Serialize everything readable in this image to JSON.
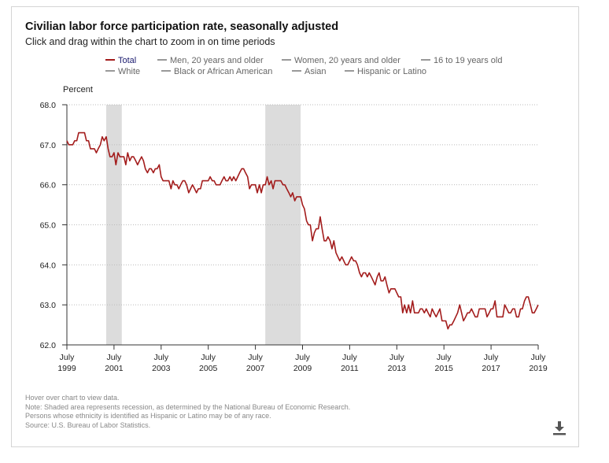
{
  "header": {
    "title": "Civilian labor force participation rate, seasonally adjusted",
    "subtitle": "Click and drag within the chart to zoom in on time periods"
  },
  "legend": {
    "items": [
      {
        "label": "Total",
        "active": true
      },
      {
        "label": "Men, 20 years and older",
        "active": false
      },
      {
        "label": "Women, 20 years and older",
        "active": false
      },
      {
        "label": "16 to 19 years old",
        "active": false
      },
      {
        "label": "White",
        "active": false
      },
      {
        "label": "Black or African American",
        "active": false
      },
      {
        "label": "Asian",
        "active": false
      },
      {
        "label": "Hispanic or Latino",
        "active": false
      }
    ]
  },
  "notes": [
    "Hover over chart to view data.",
    "Note: Shaded area represents recession, as determined by the National Bureau of Economic Research.",
    "Persons whose ethnicity is identified as Hispanic or Latino may be of any race.",
    "Source: U.S. Bureau of Labor Statistics."
  ],
  "icons": {
    "download": "download-icon"
  },
  "colors": {
    "series": "#a31c1c",
    "recession": "#dcdcdc",
    "legend_active": "#1a1a6e"
  },
  "chart_data": {
    "type": "line",
    "title": "Civilian labor force participation rate, seasonally adjusted",
    "ylabel": "Percent",
    "xlabel": "",
    "ylim": [
      62.0,
      68.0
    ],
    "yticks": [
      "68.0",
      "67.0",
      "66.0",
      "65.0",
      "64.0",
      "63.0",
      "62.0"
    ],
    "xticks": [
      {
        "label": "July",
        "year": "1999",
        "t": 1999.5
      },
      {
        "label": "July",
        "year": "2001",
        "t": 2001.5
      },
      {
        "label": "July",
        "year": "2003",
        "t": 2003.5
      },
      {
        "label": "July",
        "year": "2005",
        "t": 2005.5
      },
      {
        "label": "July",
        "year": "2007",
        "t": 2007.5
      },
      {
        "label": "July",
        "year": "2009",
        "t": 2009.5
      },
      {
        "label": "July",
        "year": "2011",
        "t": 2011.5
      },
      {
        "label": "July",
        "year": "2013",
        "t": 2013.5
      },
      {
        "label": "July",
        "year": "2015",
        "t": 2015.5
      },
      {
        "label": "July",
        "year": "2017",
        "t": 2017.5
      },
      {
        "label": "July",
        "year": "2019",
        "t": 2019.5
      }
    ],
    "xlim": [
      1999.5,
      2019.5
    ],
    "grid": "horizontal-dotted",
    "recessions": [
      {
        "start": 2001.17,
        "end": 2001.83
      },
      {
        "start": 2007.92,
        "end": 2009.42
      }
    ],
    "series": [
      {
        "name": "Total",
        "points": [
          [
            1999.5,
            67.1
          ],
          [
            1999.58,
            67.0
          ],
          [
            1999.67,
            67.0
          ],
          [
            1999.75,
            67.0
          ],
          [
            1999.83,
            67.1
          ],
          [
            1999.92,
            67.1
          ],
          [
            2000.0,
            67.3
          ],
          [
            2000.08,
            67.3
          ],
          [
            2000.17,
            67.3
          ],
          [
            2000.25,
            67.3
          ],
          [
            2000.33,
            67.1
          ],
          [
            2000.42,
            67.1
          ],
          [
            2000.5,
            66.9
          ],
          [
            2000.58,
            66.9
          ],
          [
            2000.67,
            66.9
          ],
          [
            2000.75,
            66.8
          ],
          [
            2000.83,
            66.9
          ],
          [
            2000.92,
            67.0
          ],
          [
            2001.0,
            67.2
          ],
          [
            2001.08,
            67.1
          ],
          [
            2001.17,
            67.2
          ],
          [
            2001.25,
            66.9
          ],
          [
            2001.33,
            66.7
          ],
          [
            2001.42,
            66.7
          ],
          [
            2001.5,
            66.8
          ],
          [
            2001.58,
            66.5
          ],
          [
            2001.67,
            66.8
          ],
          [
            2001.75,
            66.7
          ],
          [
            2001.83,
            66.7
          ],
          [
            2001.92,
            66.7
          ],
          [
            2002.0,
            66.5
          ],
          [
            2002.08,
            66.8
          ],
          [
            2002.17,
            66.6
          ],
          [
            2002.25,
            66.7
          ],
          [
            2002.33,
            66.7
          ],
          [
            2002.42,
            66.6
          ],
          [
            2002.5,
            66.5
          ],
          [
            2002.58,
            66.6
          ],
          [
            2002.67,
            66.7
          ],
          [
            2002.75,
            66.6
          ],
          [
            2002.83,
            66.4
          ],
          [
            2002.92,
            66.3
          ],
          [
            2003.0,
            66.4
          ],
          [
            2003.08,
            66.4
          ],
          [
            2003.17,
            66.3
          ],
          [
            2003.25,
            66.4
          ],
          [
            2003.33,
            66.4
          ],
          [
            2003.42,
            66.5
          ],
          [
            2003.5,
            66.2
          ],
          [
            2003.58,
            66.1
          ],
          [
            2003.67,
            66.1
          ],
          [
            2003.75,
            66.1
          ],
          [
            2003.83,
            66.1
          ],
          [
            2003.92,
            65.9
          ],
          [
            2004.0,
            66.1
          ],
          [
            2004.08,
            66.0
          ],
          [
            2004.17,
            66.0
          ],
          [
            2004.25,
            65.9
          ],
          [
            2004.33,
            66.0
          ],
          [
            2004.42,
            66.1
          ],
          [
            2004.5,
            66.1
          ],
          [
            2004.58,
            66.0
          ],
          [
            2004.67,
            65.8
          ],
          [
            2004.75,
            65.9
          ],
          [
            2004.83,
            66.0
          ],
          [
            2004.92,
            65.9
          ],
          [
            2005.0,
            65.8
          ],
          [
            2005.08,
            65.9
          ],
          [
            2005.17,
            65.9
          ],
          [
            2005.25,
            66.1
          ],
          [
            2005.33,
            66.1
          ],
          [
            2005.42,
            66.1
          ],
          [
            2005.5,
            66.1
          ],
          [
            2005.58,
            66.2
          ],
          [
            2005.67,
            66.1
          ],
          [
            2005.75,
            66.1
          ],
          [
            2005.83,
            66.0
          ],
          [
            2005.92,
            66.0
          ],
          [
            2006.0,
            66.0
          ],
          [
            2006.08,
            66.1
          ],
          [
            2006.17,
            66.2
          ],
          [
            2006.25,
            66.1
          ],
          [
            2006.33,
            66.1
          ],
          [
            2006.42,
            66.2
          ],
          [
            2006.5,
            66.1
          ],
          [
            2006.58,
            66.2
          ],
          [
            2006.67,
            66.1
          ],
          [
            2006.75,
            66.2
          ],
          [
            2006.83,
            66.3
          ],
          [
            2006.92,
            66.4
          ],
          [
            2007.0,
            66.4
          ],
          [
            2007.08,
            66.3
          ],
          [
            2007.17,
            66.2
          ],
          [
            2007.25,
            65.9
          ],
          [
            2007.33,
            66.0
          ],
          [
            2007.42,
            66.0
          ],
          [
            2007.5,
            66.0
          ],
          [
            2007.58,
            65.8
          ],
          [
            2007.67,
            66.0
          ],
          [
            2007.75,
            65.8
          ],
          [
            2007.83,
            66.0
          ],
          [
            2007.92,
            66.0
          ],
          [
            2008.0,
            66.2
          ],
          [
            2008.08,
            66.0
          ],
          [
            2008.17,
            66.1
          ],
          [
            2008.25,
            65.9
          ],
          [
            2008.33,
            66.1
          ],
          [
            2008.42,
            66.1
          ],
          [
            2008.5,
            66.1
          ],
          [
            2008.58,
            66.1
          ],
          [
            2008.67,
            66.0
          ],
          [
            2008.75,
            66.0
          ],
          [
            2008.83,
            65.9
          ],
          [
            2008.92,
            65.8
          ],
          [
            2009.0,
            65.7
          ],
          [
            2009.08,
            65.8
          ],
          [
            2009.17,
            65.6
          ],
          [
            2009.25,
            65.7
          ],
          [
            2009.33,
            65.7
          ],
          [
            2009.42,
            65.7
          ],
          [
            2009.5,
            65.5
          ],
          [
            2009.58,
            65.4
          ],
          [
            2009.67,
            65.1
          ],
          [
            2009.75,
            65.0
          ],
          [
            2009.83,
            65.0
          ],
          [
            2009.92,
            64.6
          ],
          [
            2010.0,
            64.8
          ],
          [
            2010.08,
            64.9
          ],
          [
            2010.17,
            64.9
          ],
          [
            2010.25,
            65.2
          ],
          [
            2010.33,
            64.9
          ],
          [
            2010.42,
            64.6
          ],
          [
            2010.5,
            64.6
          ],
          [
            2010.58,
            64.7
          ],
          [
            2010.67,
            64.6
          ],
          [
            2010.75,
            64.4
          ],
          [
            2010.83,
            64.6
          ],
          [
            2010.92,
            64.3
          ],
          [
            2011.0,
            64.2
          ],
          [
            2011.08,
            64.1
          ],
          [
            2011.17,
            64.2
          ],
          [
            2011.25,
            64.1
          ],
          [
            2011.33,
            64.0
          ],
          [
            2011.42,
            64.0
          ],
          [
            2011.5,
            64.1
          ],
          [
            2011.58,
            64.2
          ],
          [
            2011.67,
            64.1
          ],
          [
            2011.75,
            64.1
          ],
          [
            2011.83,
            64.0
          ],
          [
            2011.92,
            63.8
          ],
          [
            2012.0,
            63.7
          ],
          [
            2012.08,
            63.8
          ],
          [
            2012.17,
            63.8
          ],
          [
            2012.25,
            63.7
          ],
          [
            2012.33,
            63.8
          ],
          [
            2012.42,
            63.7
          ],
          [
            2012.5,
            63.6
          ],
          [
            2012.58,
            63.5
          ],
          [
            2012.67,
            63.7
          ],
          [
            2012.75,
            63.8
          ],
          [
            2012.83,
            63.6
          ],
          [
            2012.92,
            63.6
          ],
          [
            2013.0,
            63.7
          ],
          [
            2013.08,
            63.5
          ],
          [
            2013.17,
            63.3
          ],
          [
            2013.25,
            63.4
          ],
          [
            2013.33,
            63.4
          ],
          [
            2013.42,
            63.4
          ],
          [
            2013.5,
            63.3
          ],
          [
            2013.58,
            63.2
          ],
          [
            2013.67,
            63.2
          ],
          [
            2013.75,
            62.8
          ],
          [
            2013.83,
            63.0
          ],
          [
            2013.92,
            62.8
          ],
          [
            2014.0,
            63.0
          ],
          [
            2014.08,
            62.8
          ],
          [
            2014.17,
            63.1
          ],
          [
            2014.25,
            62.8
          ],
          [
            2014.33,
            62.8
          ],
          [
            2014.42,
            62.8
          ],
          [
            2014.5,
            62.9
          ],
          [
            2014.58,
            62.9
          ],
          [
            2014.67,
            62.8
          ],
          [
            2014.75,
            62.9
          ],
          [
            2014.83,
            62.8
          ],
          [
            2014.92,
            62.7
          ],
          [
            2015.0,
            62.9
          ],
          [
            2015.08,
            62.8
          ],
          [
            2015.17,
            62.7
          ],
          [
            2015.25,
            62.8
          ],
          [
            2015.33,
            62.9
          ],
          [
            2015.42,
            62.6
          ],
          [
            2015.5,
            62.6
          ],
          [
            2015.58,
            62.6
          ],
          [
            2015.67,
            62.4
          ],
          [
            2015.75,
            62.5
          ],
          [
            2015.83,
            62.5
          ],
          [
            2015.92,
            62.6
          ],
          [
            2016.0,
            62.7
          ],
          [
            2016.08,
            62.8
          ],
          [
            2016.17,
            63.0
          ],
          [
            2016.25,
            62.8
          ],
          [
            2016.33,
            62.6
          ],
          [
            2016.42,
            62.7
          ],
          [
            2016.5,
            62.8
          ],
          [
            2016.58,
            62.8
          ],
          [
            2016.67,
            62.9
          ],
          [
            2016.75,
            62.8
          ],
          [
            2016.83,
            62.7
          ],
          [
            2016.92,
            62.7
          ],
          [
            2017.0,
            62.9
          ],
          [
            2017.08,
            62.9
          ],
          [
            2017.17,
            62.9
          ],
          [
            2017.25,
            62.9
          ],
          [
            2017.33,
            62.7
          ],
          [
            2017.42,
            62.8
          ],
          [
            2017.5,
            62.9
          ],
          [
            2017.58,
            62.9
          ],
          [
            2017.67,
            63.1
          ],
          [
            2017.75,
            62.7
          ],
          [
            2017.83,
            62.7
          ],
          [
            2017.92,
            62.7
          ],
          [
            2018.0,
            62.7
          ],
          [
            2018.08,
            63.0
          ],
          [
            2018.17,
            62.9
          ],
          [
            2018.25,
            62.8
          ],
          [
            2018.33,
            62.8
          ],
          [
            2018.42,
            62.9
          ],
          [
            2018.5,
            62.9
          ],
          [
            2018.58,
            62.7
          ],
          [
            2018.67,
            62.7
          ],
          [
            2018.75,
            62.9
          ],
          [
            2018.83,
            62.9
          ],
          [
            2018.92,
            63.1
          ],
          [
            2019.0,
            63.2
          ],
          [
            2019.08,
            63.2
          ],
          [
            2019.17,
            63.0
          ],
          [
            2019.25,
            62.8
          ],
          [
            2019.33,
            62.8
          ],
          [
            2019.42,
            62.9
          ],
          [
            2019.5,
            63.0
          ]
        ]
      }
    ]
  }
}
